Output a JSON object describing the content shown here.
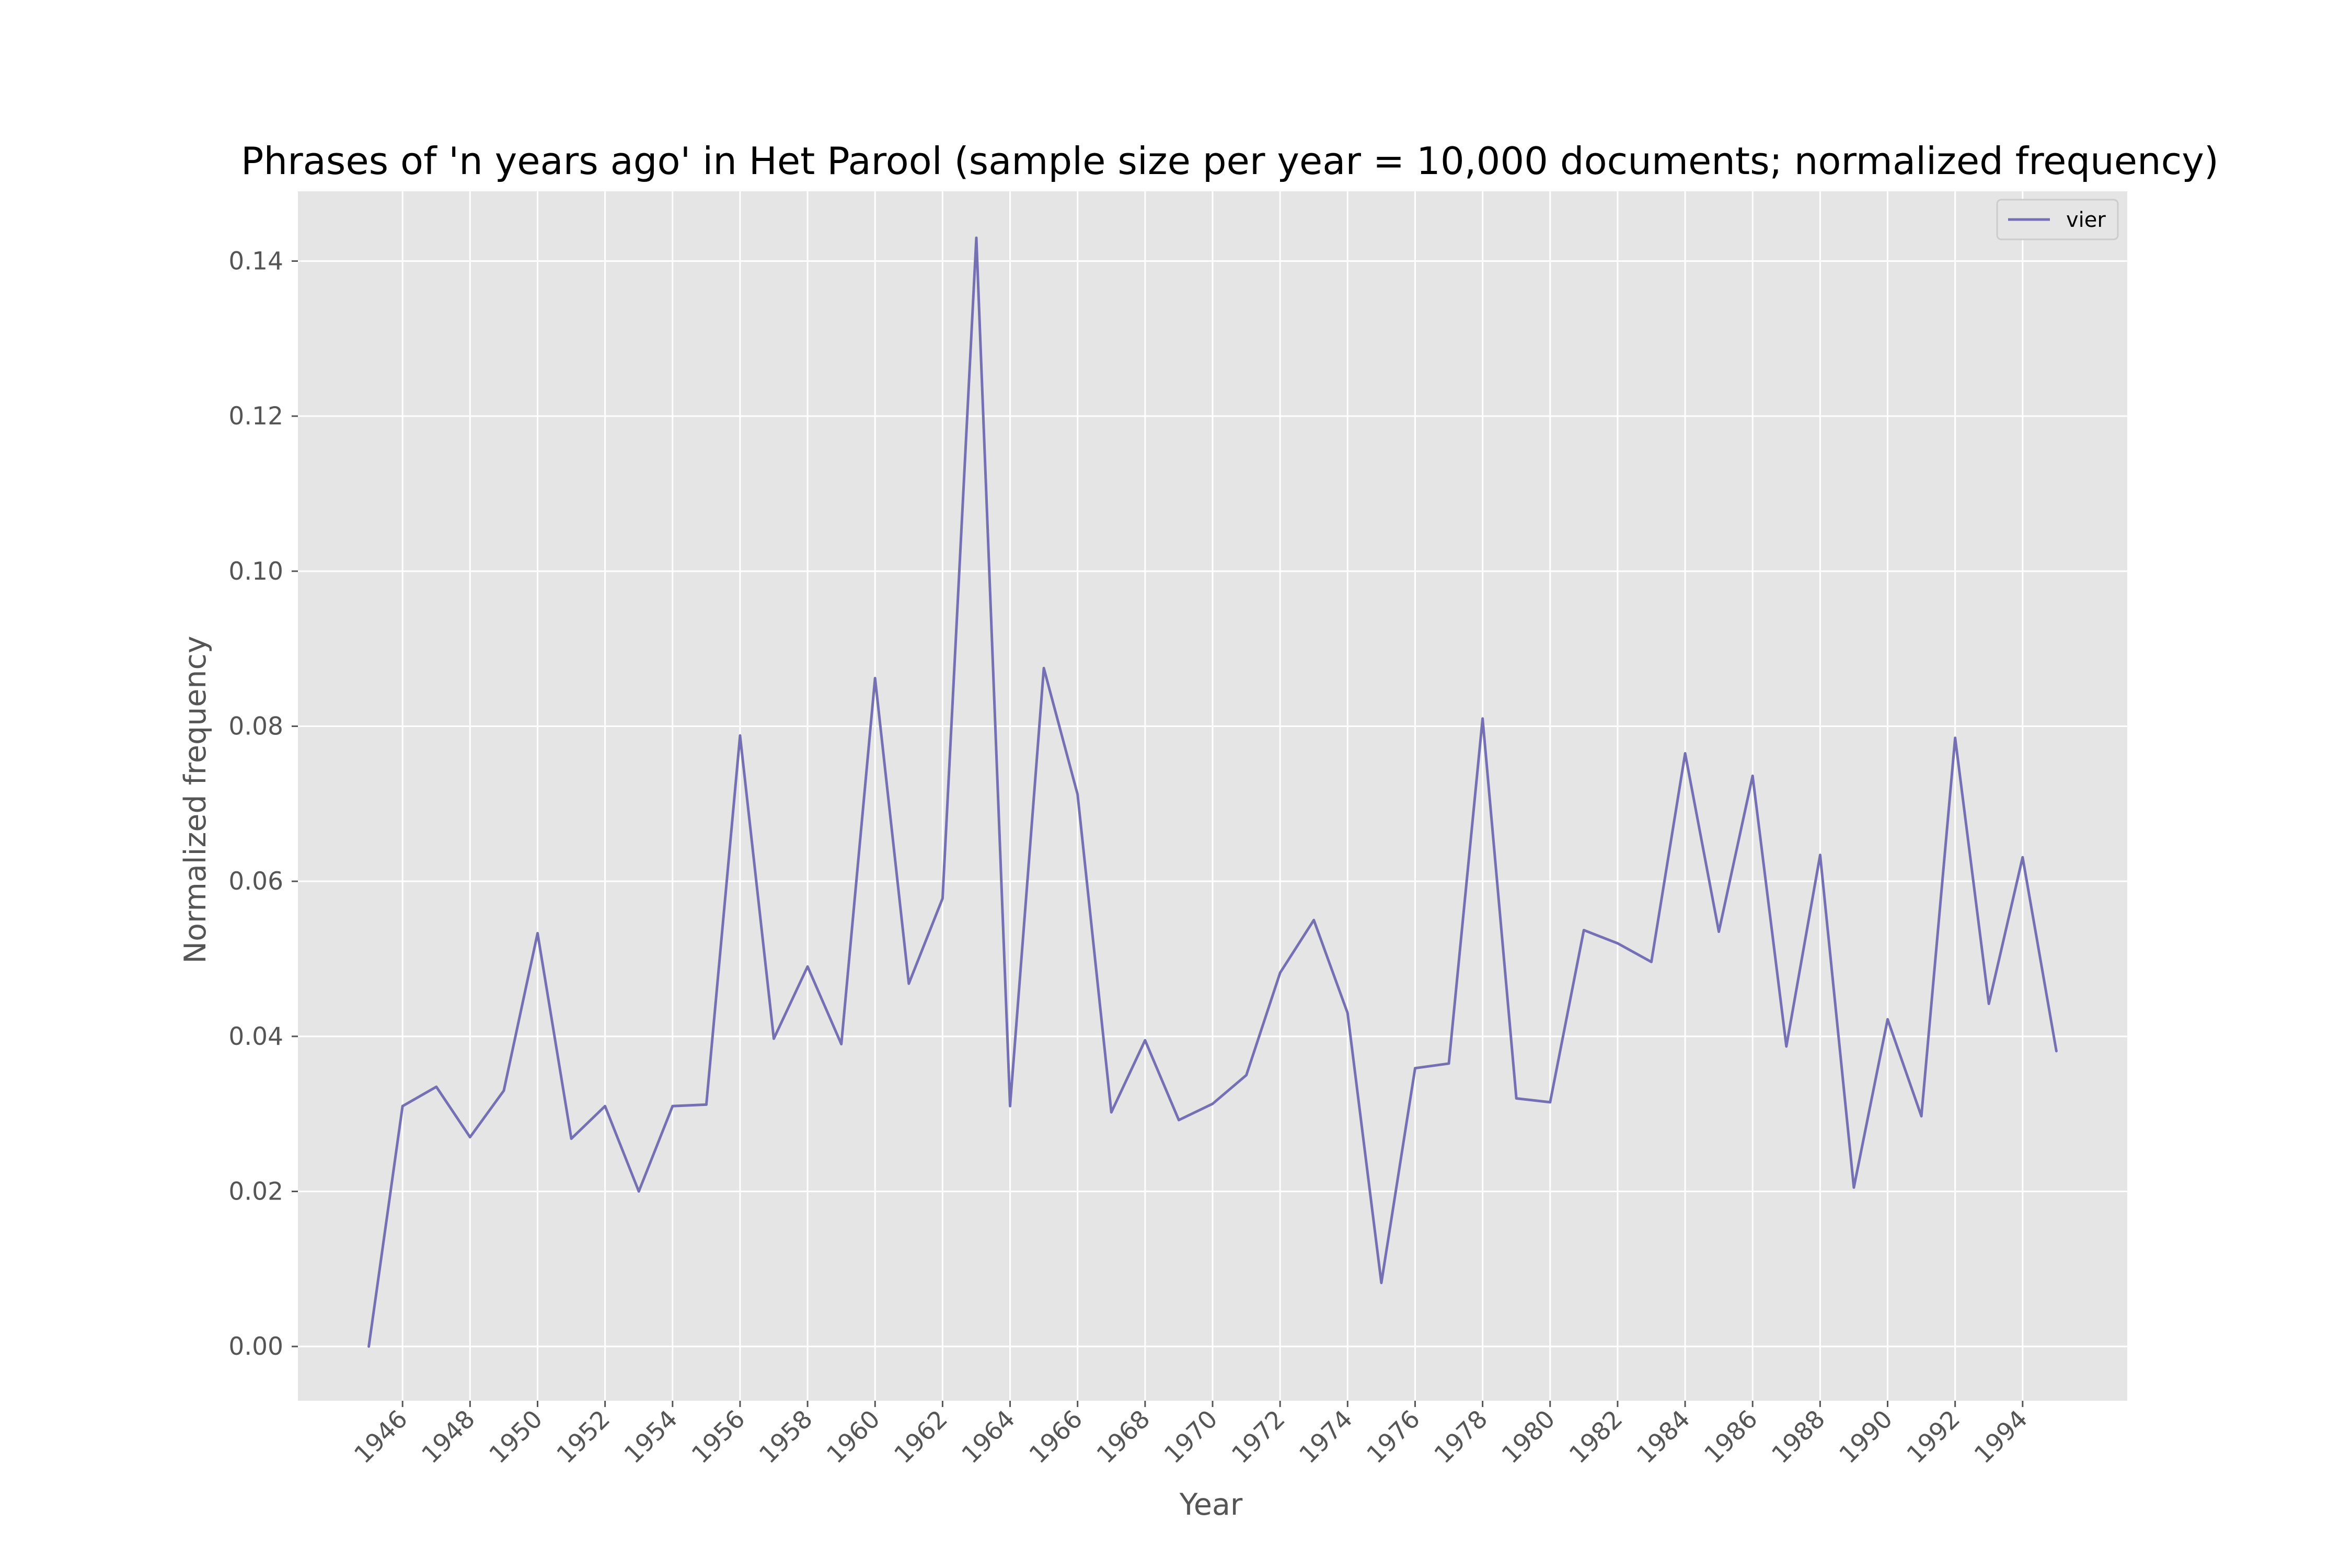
{
  "chart_data": {
    "type": "line",
    "title": "Phrases of 'n years ago' in Het Parool (sample size per year = 10,000 documents; normalized frequency)",
    "xlabel": "Year",
    "ylabel": "Normalized frequency",
    "xlim": [
      1942.9,
      1997.1
    ],
    "ylim": [
      -0.007,
      0.149
    ],
    "x_ticks": [
      1946,
      1948,
      1950,
      1952,
      1954,
      1956,
      1958,
      1960,
      1962,
      1964,
      1966,
      1968,
      1970,
      1972,
      1974,
      1976,
      1978,
      1980,
      1982,
      1984,
      1986,
      1988,
      1990,
      1992,
      1994
    ],
    "y_ticks": [
      0.0,
      0.02,
      0.04,
      0.06,
      0.08,
      0.1,
      0.12,
      0.14
    ],
    "y_tick_labels": [
      "0.00",
      "0.02",
      "0.04",
      "0.06",
      "0.08",
      "0.10",
      "0.12",
      "0.14"
    ],
    "grid": true,
    "background": "#e5e5e5",
    "legend_position": "top-right",
    "x": [
      1945,
      1946,
      1947,
      1948,
      1949,
      1950,
      1951,
      1952,
      1953,
      1954,
      1955,
      1956,
      1957,
      1958,
      1959,
      1960,
      1961,
      1962,
      1963,
      1964,
      1965,
      1966,
      1967,
      1968,
      1969,
      1970,
      1971,
      1972,
      1973,
      1974,
      1975,
      1976,
      1977,
      1978,
      1979,
      1980,
      1981,
      1982,
      1983,
      1984,
      1985,
      1986,
      1987,
      1988,
      1989,
      1990,
      1991,
      1992,
      1993,
      1994,
      1995
    ],
    "series": [
      {
        "name": "vier",
        "color": "#7570b3",
        "values": [
          0.0,
          0.031,
          0.0335,
          0.027,
          0.033,
          0.0533,
          0.0268,
          0.031,
          0.02,
          0.031,
          0.0312,
          0.0788,
          0.0397,
          0.049,
          0.039,
          0.0862,
          0.0468,
          0.0578,
          0.143,
          0.031,
          0.0875,
          0.0712,
          0.0302,
          0.0395,
          0.0292,
          0.0313,
          0.035,
          0.0482,
          0.055,
          0.043,
          0.0082,
          0.0359,
          0.0365,
          0.081,
          0.032,
          0.0315,
          0.0537,
          0.052,
          0.0496,
          0.0765,
          0.0535,
          0.0736,
          0.0387,
          0.0634,
          0.0205,
          0.0422,
          0.0297,
          0.0785,
          0.0442,
          0.0631,
          0.0381
        ]
      }
    ]
  }
}
